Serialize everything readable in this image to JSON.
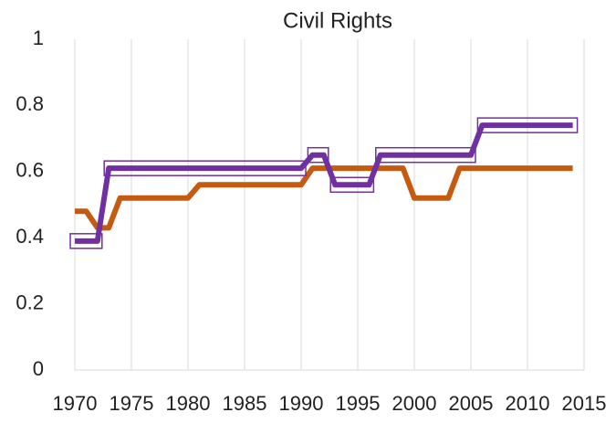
{
  "chart_data": {
    "type": "line",
    "title": "Civil Rights",
    "x": [
      1970,
      1971,
      1972,
      1973,
      1974,
      1975,
      1976,
      1977,
      1978,
      1979,
      1980,
      1981,
      1982,
      1983,
      1984,
      1985,
      1986,
      1987,
      1988,
      1989,
      1990,
      1991,
      1992,
      1993,
      1994,
      1995,
      1996,
      1997,
      1998,
      1999,
      2000,
      2001,
      2002,
      2003,
      2004,
      2005,
      2006,
      2007,
      2008,
      2009,
      2010,
      2011,
      2012,
      2013,
      2014
    ],
    "series": [
      {
        "color": "#7030a0",
        "highlight_runs": true,
        "values": [
          0.39,
          0.39,
          0.39,
          0.61,
          0.61,
          0.61,
          0.61,
          0.61,
          0.61,
          0.61,
          0.61,
          0.61,
          0.61,
          0.61,
          0.61,
          0.61,
          0.61,
          0.61,
          0.61,
          0.61,
          0.61,
          0.65,
          0.65,
          0.56,
          0.56,
          0.56,
          0.56,
          0.65,
          0.65,
          0.65,
          0.65,
          0.65,
          0.65,
          0.65,
          0.65,
          0.65,
          0.74,
          0.74,
          0.74,
          0.74,
          0.74,
          0.74,
          0.74,
          0.74,
          0.74
        ]
      },
      {
        "color": "#c55a11",
        "values": [
          0.48,
          0.48,
          0.43,
          0.43,
          0.52,
          0.52,
          0.52,
          0.52,
          0.52,
          0.52,
          0.52,
          0.56,
          0.56,
          0.56,
          0.56,
          0.56,
          0.56,
          0.56,
          0.56,
          0.56,
          0.56,
          0.61,
          0.61,
          0.61,
          0.61,
          0.61,
          0.61,
          0.61,
          0.61,
          0.61,
          0.52,
          0.52,
          0.52,
          0.52,
          0.61,
          0.61,
          0.61,
          0.61,
          0.61,
          0.61,
          0.61,
          0.61,
          0.61,
          0.61,
          0.61
        ]
      }
    ],
    "xlim": [
      1970,
      2015
    ],
    "xticks": [
      1970,
      1975,
      1980,
      1985,
      1990,
      1995,
      2000,
      2005,
      2010,
      2015
    ],
    "ylim": [
      0,
      1
    ],
    "yticks": [
      0,
      0.2,
      0.4,
      0.6,
      0.8,
      1
    ],
    "grid": "x"
  }
}
